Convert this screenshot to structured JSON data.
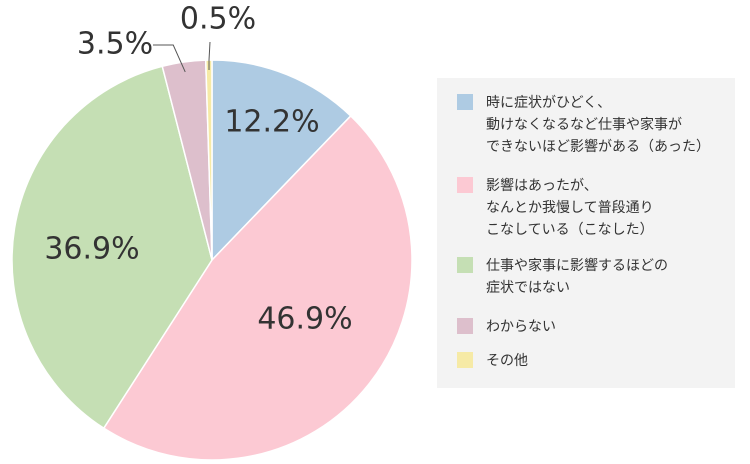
{
  "chart_data": {
    "type": "pie",
    "categories": [
      "時に症状がひどく、\n動けなくなるなど仕事や家事が\nできないほど影響がある（あった）",
      "影響はあったが、\nなんとか我慢して普段通り\nこなしている（こなした）",
      "仕事や家事に影響するほどの\n症状ではない",
      "わからない",
      "その他"
    ],
    "values": [
      12.2,
      46.9,
      36.9,
      3.5,
      0.5
    ],
    "value_labels": [
      "12.2%",
      "46.9%",
      "36.9%",
      "3.5%",
      "0.5%"
    ],
    "colors": [
      "#aecbe3",
      "#fcc9d3",
      "#c5dfb4",
      "#ddbfcc",
      "#f6eaa6"
    ],
    "legend": "right"
  }
}
